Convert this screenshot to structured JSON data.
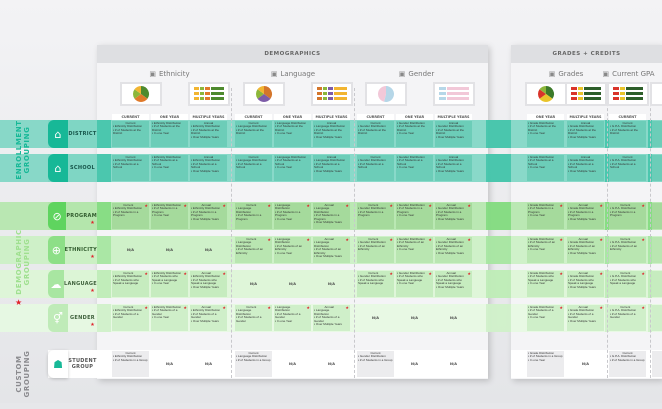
{
  "colors": {
    "teal": "#17b897",
    "green": "#5fd45f",
    "star": "#e0202a"
  },
  "groups": {
    "enrollment": "ENROLLMENT GROUPING",
    "demographic": "DEMOGRAPHIC GROUPING",
    "demographic_star": "★",
    "custom": "CUSTOM GROUPING"
  },
  "rows": [
    {
      "label": "DISTRICT",
      "icon": "district-icon",
      "star": false
    },
    {
      "label": "SCHOOL",
      "icon": "school-icon",
      "star": false
    },
    {
      "label": "PROGRAM",
      "icon": "paperclip-icon",
      "star": true
    },
    {
      "label": "ETHNICITY",
      "icon": "globe-icon",
      "star": true
    },
    {
      "label": "LANGUAGE",
      "icon": "speech-bubbles-icon",
      "star": true
    },
    {
      "label": "GENDER",
      "icon": "gender-icon",
      "star": true
    },
    {
      "label": "STUDENT GROUP",
      "icon": "student-group-icon",
      "star": false
    }
  ],
  "panels": [
    {
      "title": "DEMOGRAPHICS"
    },
    {
      "title": "GRADES + CREDITS"
    }
  ],
  "sections": [
    {
      "title": "Ethnicity",
      "icon": "globe-icon",
      "columns": [
        "CURRENT",
        "ONE YEAR",
        "MULTIPLE YEARS"
      ],
      "metric": "Ethnicity Distribution",
      "na_row": 3
    },
    {
      "title": "Language",
      "icon": "speech-bubble-icon",
      "columns": [
        "CURRENT",
        "ONE YEAR",
        "MULTIPLE YEARS"
      ],
      "metric": "Language Distribution",
      "na_row": 4
    },
    {
      "title": "Gender",
      "icon": "gender-icon",
      "columns": [
        "CURRENT",
        "ONE YEAR",
        "MULTIPLE YEARS"
      ],
      "metric": "Gender Distribution",
      "na_row": 5
    },
    {
      "title": "Grades",
      "icon": "report-card-icon",
      "columns": [
        "ONE YEAR",
        "MULTIPLE YEARS"
      ],
      "metric": "Grade Distribution",
      "na_row": -1
    },
    {
      "title": "Current GPA",
      "icon": "gpa-icon",
      "columns": [
        "CURRENT"
      ],
      "metric": "G.P.A. Distribution",
      "na_row": -1
    }
  ],
  "population": [
    "# of Students at the District",
    "# of Students at a School",
    "# of Students in a Program",
    "# of Students of an Ethnicity",
    "# of Students who Speak a Language",
    "# of Students of a Gender",
    "# of Students in a Group"
  ],
  "labels": {
    "CURRENT": "Current",
    "ONE YEAR": "In one Year",
    "MULTIPLE YEARS": "Annual",
    "multi_suffix": "Over Multiple Years",
    "na": "N/A",
    "star": "★"
  }
}
